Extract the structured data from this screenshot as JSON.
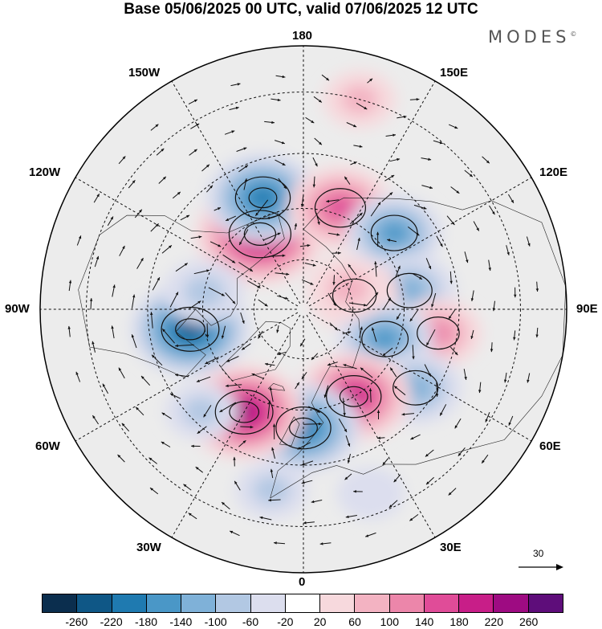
{
  "title": "Base 05/06/2025 00 UTC, valid 07/06/2025 12 UTC",
  "brand": "MODES",
  "brand_mark": "©",
  "longitude_labels": {
    "top": "180",
    "bottom": "0",
    "left": "90W",
    "right": "90E",
    "nw1": "150W",
    "nw2": "120W",
    "ne1": "150E",
    "ne2": "120E",
    "sw1": "60W",
    "sw2": "30W",
    "se1": "60E",
    "se2": "30E"
  },
  "reference_vector": {
    "label": "30",
    "icon": "arrow-right-icon"
  },
  "colorbar": {
    "colors": [
      "#0b2e4e",
      "#0f5786",
      "#1f7ab0",
      "#4a97c7",
      "#7fb1d8",
      "#b2c8e3",
      "#dcdeee",
      "#ffffff",
      "#f7d9dd",
      "#f3b3c2",
      "#ec86aa",
      "#e04c98",
      "#c81e88",
      "#9e0b82",
      "#5e0d7a"
    ],
    "ticks": [
      "-260",
      "-220",
      "-180",
      "-140",
      "-100",
      "-60",
      "-20",
      "20",
      "60",
      "100",
      "140",
      "180",
      "220",
      "260"
    ]
  },
  "map": {
    "projection": "polar stereographic (north)",
    "background": "#ececec",
    "anomalies": [
      {
        "lon": -150,
        "lat": 64,
        "value": 250
      },
      {
        "lon": -160,
        "lat": 55,
        "value": -200
      },
      {
        "lon": 160,
        "lat": 58,
        "value": 170
      },
      {
        "lon": 130,
        "lat": 55,
        "value": -140
      },
      {
        "lon": 100,
        "lat": 58,
        "value": -130
      },
      {
        "lon": 105,
        "lat": 74,
        "value": 120
      },
      {
        "lon": 80,
        "lat": 50,
        "value": 110
      },
      {
        "lon": 70,
        "lat": 64,
        "value": -140
      },
      {
        "lon": 55,
        "lat": 50,
        "value": -130
      },
      {
        "lon": 30,
        "lat": 60,
        "value": 200
      },
      {
        "lon": 0,
        "lat": 55,
        "value": -200
      },
      {
        "lon": -30,
        "lat": 55,
        "value": 220
      },
      {
        "lon": -80,
        "lat": 56,
        "value": -220
      },
      {
        "lon": -100,
        "lat": 60,
        "value": -90
      },
      {
        "lon": 165,
        "lat": 30,
        "value": 60
      },
      {
        "lon": 115,
        "lat": 75,
        "value": 90
      },
      {
        "lon": -10,
        "lat": 38,
        "value": -60
      },
      {
        "lon": 20,
        "lat": 35,
        "value": -40
      },
      {
        "lon": -45,
        "lat": 48,
        "value": -60
      }
    ]
  }
}
